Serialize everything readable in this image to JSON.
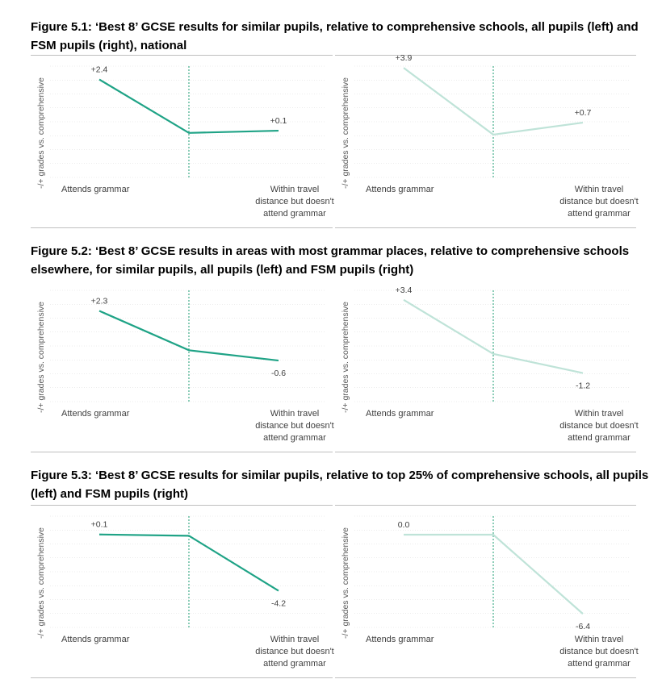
{
  "figures": [
    {
      "title": "Figure 5.1: ‘Best 8’ GCSE results for similar pupils, relative to comprehensive schools, all pupils (left) and FSM pupils (right), national",
      "ylabel": "-/+ grades vs. comprehensive",
      "categories": [
        "Attends grammar",
        "",
        "Within travel distance but doesn't attend grammar"
      ]
    },
    {
      "title": "Figure 5.2: ‘Best 8’ GCSE results in areas with most grammar places, relative to comprehensive schools elsewhere, for similar pupils, all pupils (left) and FSM pupils (right)",
      "ylabel": "-/+ grades vs. comprehensive",
      "categories": [
        "Attends grammar",
        "",
        "Within travel distance but doesn't attend grammar"
      ]
    },
    {
      "title": "Figure 5.3: ‘Best 8’ GCSE results for similar pupils, relative to top 25% of comprehensive schools, all pupils (left) and FSM pupils (right)",
      "ylabel": "-/+ grades vs. comprehensive",
      "categories": [
        "Attends grammar",
        "",
        "Within travel distance but doesn't attend grammar"
      ]
    }
  ],
  "x_labels": {
    "left": "Attends grammar",
    "right_line1": "Within travel",
    "right_line2": "distance but doesn't",
    "right_line3": "attend grammar"
  },
  "colors": {
    "all_pupils": "#1fa386",
    "fsm_pupils": "#bfe3d8",
    "grid": "#d9d9d9",
    "divider": "#5cb89a"
  },
  "chart_data": [
    {
      "type": "line",
      "figure": "5.1",
      "panel": "left",
      "categories": [
        "Attends grammar",
        "",
        "Within travel distance but doesn't attend grammar"
      ],
      "values": [
        2.4,
        0.0,
        0.1
      ],
      "labels": [
        "+2.4",
        "",
        "+0.1"
      ],
      "ylim": [
        -2,
        3
      ]
    },
    {
      "type": "line",
      "figure": "5.1",
      "panel": "right",
      "categories": [
        "Attends grammar",
        "",
        "Within travel distance but doesn't attend grammar"
      ],
      "values": [
        3.9,
        0.0,
        0.7
      ],
      "labels": [
        "+3.9",
        "",
        "+0.7"
      ],
      "ylim": [
        -2.5,
        4
      ]
    },
    {
      "type": "line",
      "figure": "5.2",
      "panel": "left",
      "categories": [
        "Attends grammar",
        "",
        "Within travel distance but doesn't attend grammar"
      ],
      "values": [
        2.3,
        0.0,
        -0.6
      ],
      "labels": [
        "+2.3",
        "",
        "-0.6"
      ],
      "ylim": [
        -3,
        3.5
      ]
    },
    {
      "type": "line",
      "figure": "5.2",
      "panel": "right",
      "categories": [
        "Attends grammar",
        "",
        "Within travel distance but doesn't attend grammar"
      ],
      "values": [
        3.4,
        0.0,
        -1.2
      ],
      "labels": [
        "+3.4",
        "",
        "-1.2"
      ],
      "ylim": [
        -3,
        4
      ]
    },
    {
      "type": "line",
      "figure": "5.3",
      "panel": "left",
      "categories": [
        "Attends grammar",
        "",
        "Within travel distance but doesn't attend grammar"
      ],
      "values": [
        0.1,
        0.0,
        -4.2
      ],
      "labels": [
        "+0.1",
        "",
        "-4.2"
      ],
      "ylim": [
        -7,
        1.5
      ]
    },
    {
      "type": "line",
      "figure": "5.3",
      "panel": "right",
      "categories": [
        "Attends grammar",
        "",
        "Within travel distance but doesn't attend grammar"
      ],
      "values": [
        0.0,
        0.0,
        -6.4
      ],
      "labels": [
        "0.0",
        "",
        "-6.4"
      ],
      "ylim": [
        -7.5,
        1.5
      ]
    }
  ]
}
